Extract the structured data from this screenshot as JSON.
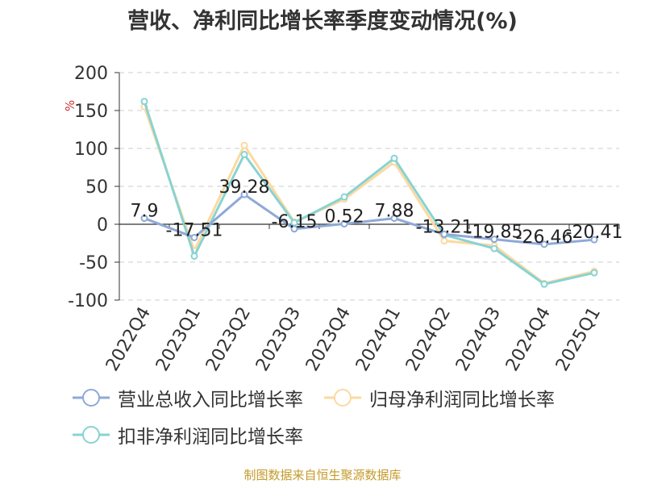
{
  "chart_data": {
    "type": "line",
    "title": "营收、净利同比增长率季度变动情况(%)",
    "ylabel": "%",
    "ylim": [
      -100,
      200
    ],
    "yticks": [
      200,
      150,
      100,
      50,
      0,
      -50,
      -100
    ],
    "grid": true,
    "legend_position": "bottom",
    "categories": [
      "2022Q4",
      "2023Q1",
      "2023Q2",
      "2023Q3",
      "2023Q4",
      "2024Q1",
      "2024Q2",
      "2024Q3",
      "2024Q4",
      "2025Q1"
    ],
    "series": [
      {
        "name": "营业总收入同比增长率",
        "color": "#8ea9d8",
        "values": [
          7.9,
          -17.51,
          39.28,
          -6.15,
          0.52,
          7.88,
          -13.21,
          -19.85,
          -26.46,
          -20.41
        ],
        "labels": [
          "7.9",
          "-17.51",
          "39.28",
          "-6.15",
          "0.52",
          "7.88",
          "-13.21",
          "-19.85",
          "-26.46",
          "-20.41"
        ]
      },
      {
        "name": "归母净利润同比增长率",
        "color": "#fcd9a0",
        "values": [
          155,
          -35,
          104,
          3,
          33,
          82,
          -22,
          -28,
          -78,
          -62
        ]
      },
      {
        "name": "扣非净利润同比增长率",
        "color": "#88d3d2",
        "values": [
          162,
          -42,
          92,
          2,
          36,
          87,
          -14,
          -32,
          -79,
          -64
        ]
      }
    ]
  },
  "source_note": "制图数据来自恒生聚源数据库"
}
